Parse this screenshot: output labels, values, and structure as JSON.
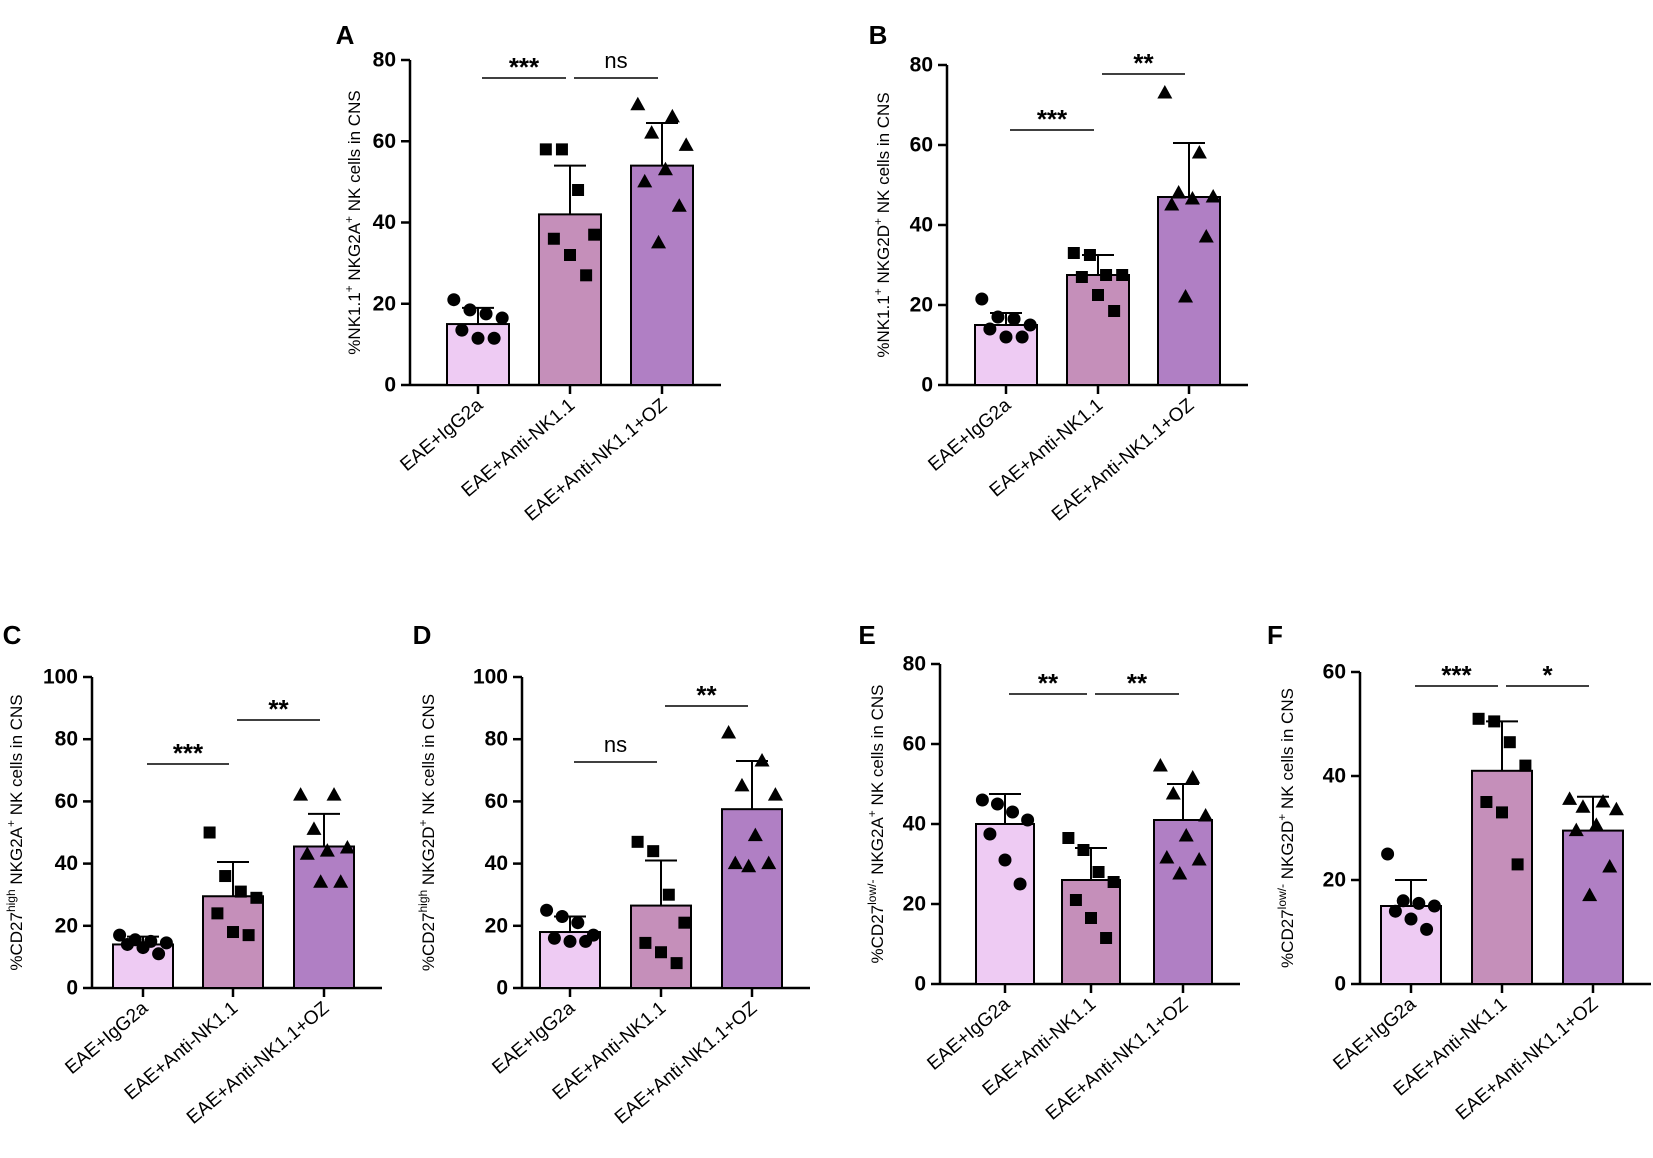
{
  "chart_data": [
    {
      "id": "A",
      "type": "bar",
      "title": "",
      "ylabel": "%NK1.1+ NKG2A+ NK cells in CNS",
      "ylabel_parts": [
        [
          "%NK1.1",
          ""
        ],
        [
          "+",
          "sup"
        ],
        [
          " NKG2A",
          ""
        ],
        [
          "+",
          "sup"
        ],
        [
          " NK cells in CNS",
          ""
        ]
      ],
      "ylim": [
        0,
        80
      ],
      "yticks": [
        0,
        20,
        40,
        60,
        80
      ],
      "yticks_text": [
        "0",
        "20",
        "40",
        "60",
        "80"
      ],
      "categories": [
        "EAE+IgG2a",
        "EAE+Anti-NK1.1",
        "EAE+Anti-NK1.1+OZ"
      ],
      "values": [
        15,
        42,
        54
      ],
      "errors": [
        4,
        12,
        10.5
      ],
      "points": [
        [
          21,
          18.5,
          17.5,
          16.5,
          13.5,
          11.5,
          11.5
        ],
        [
          58,
          58,
          48,
          37,
          36,
          32,
          27
        ],
        [
          69,
          66,
          62,
          59,
          53,
          50,
          44,
          35
        ]
      ],
      "significance": [
        {
          "from": 0,
          "to": 1,
          "label": "***"
        },
        {
          "from": 1,
          "to": 2,
          "label": "ns"
        }
      ]
    },
    {
      "id": "B",
      "type": "bar",
      "title": "",
      "ylabel": "%NK1.1+ NKG2D+ NK cells in CNS",
      "ylabel_parts": [
        [
          "%NK1.1",
          ""
        ],
        [
          "+",
          "sup"
        ],
        [
          " NKG2D",
          ""
        ],
        [
          "+",
          "sup"
        ],
        [
          " NK cells in CNS",
          ""
        ]
      ],
      "ylim": [
        0,
        80
      ],
      "yticks": [
        0,
        20,
        40,
        60,
        80
      ],
      "yticks_text": [
        "0",
        "20",
        "40",
        "60",
        "80"
      ],
      "categories": [
        "EAE+IgG2a",
        "EAE+Anti-NK1.1",
        "EAE+Anti-NK1.1+OZ"
      ],
      "values": [
        15,
        27.5,
        47
      ],
      "errors": [
        3,
        5,
        13.5
      ],
      "points": [
        [
          21.5,
          17,
          16.5,
          15,
          14,
          12,
          12
        ],
        [
          33,
          32.5,
          27.5,
          27.5,
          27,
          22.5,
          18.5
        ],
        [
          73,
          58,
          48,
          47,
          46.5,
          45,
          37,
          22
        ]
      ],
      "significance": [
        {
          "from": 0,
          "to": 1,
          "label": "***"
        },
        {
          "from": 1,
          "to": 2,
          "label": "**"
        }
      ]
    },
    {
      "id": "C",
      "type": "bar",
      "title": "",
      "ylabel": "%CD27high NKG2A+ NK cells in CNS",
      "ylabel_parts": [
        [
          "%CD27",
          ""
        ],
        [
          "high",
          "sup"
        ],
        [
          " NKG2A",
          ""
        ],
        [
          "+",
          "sup"
        ],
        [
          " NK cells in CNS",
          ""
        ]
      ],
      "ylim": [
        0,
        100
      ],
      "yticks": [
        0,
        20,
        40,
        60,
        80,
        100
      ],
      "yticks_text": [
        "0",
        "20",
        "40",
        "60",
        "80",
        "100"
      ],
      "categories": [
        "EAE+IgG2a",
        "EAE+Anti-NK1.1",
        "EAE+Anti-NK1.1+OZ"
      ],
      "values": [
        14,
        29.5,
        45.5
      ],
      "errors": [
        2.5,
        11,
        10.5
      ],
      "points": [
        [
          17,
          15.5,
          15,
          14.5,
          14,
          13,
          11
        ],
        [
          50,
          36,
          31,
          29,
          24,
          18,
          17
        ],
        [
          62,
          62,
          51,
          45,
          44,
          43,
          34,
          34
        ]
      ],
      "significance": [
        {
          "from": 0,
          "to": 1,
          "label": "***"
        },
        {
          "from": 1,
          "to": 2,
          "label": "**"
        }
      ]
    },
    {
      "id": "D",
      "type": "bar",
      "title": "",
      "ylabel": "%CD27high NKG2D+ NK cells in CNS",
      "ylabel_parts": [
        [
          "%CD27",
          ""
        ],
        [
          "high",
          "sup"
        ],
        [
          " NKG2D",
          ""
        ],
        [
          "+",
          "sup"
        ],
        [
          " NK cells in CNS",
          ""
        ]
      ],
      "ylim": [
        0,
        100
      ],
      "yticks": [
        0,
        20,
        40,
        60,
        80,
        100
      ],
      "yticks_text": [
        "0",
        "20",
        "40",
        "60",
        "80",
        "100"
      ],
      "categories": [
        "EAE+IgG2a",
        "EAE+Anti-NK1.1",
        "EAE+Anti-NK1.1+OZ"
      ],
      "values": [
        18,
        26.5,
        57.5
      ],
      "errors": [
        5,
        14.5,
        15.5
      ],
      "points": [
        [
          25,
          23,
          21,
          17,
          16,
          15,
          15
        ],
        [
          47,
          44,
          30,
          21,
          14.5,
          11.5,
          8
        ],
        [
          82,
          73,
          65,
          62,
          49,
          40,
          40,
          39
        ]
      ],
      "significance": [
        {
          "from": 0,
          "to": 1,
          "label": "ns"
        },
        {
          "from": 1,
          "to": 2,
          "label": "**"
        }
      ]
    },
    {
      "id": "E",
      "type": "bar",
      "title": "",
      "ylabel": "%CD27low/- NKG2A+ NK cells in CNS",
      "ylabel_parts": [
        [
          "%CD27",
          ""
        ],
        [
          "low/-",
          "sup"
        ],
        [
          " NKG2A",
          ""
        ],
        [
          "+",
          "sup"
        ],
        [
          " NK cells in CNS",
          ""
        ]
      ],
      "ylim": [
        0,
        80
      ],
      "yticks": [
        0,
        20,
        40,
        60,
        80
      ],
      "yticks_text": [
        "0",
        "20",
        "40",
        "60",
        "80"
      ],
      "categories": [
        "EAE+IgG2a",
        "EAE+Anti-NK1.1",
        "EAE+Anti-NK1.1+OZ"
      ],
      "values": [
        40,
        26,
        41
      ],
      "errors": [
        7.5,
        8,
        9
      ],
      "points": [
        [
          46,
          45,
          43,
          41,
          37.5,
          31,
          25
        ],
        [
          36.5,
          33.5,
          28,
          25.5,
          21,
          16.5,
          11.5
        ],
        [
          54.5,
          51.5,
          47.5,
          42,
          37,
          31.5,
          31,
          27.5
        ]
      ],
      "significance": [
        {
          "from": 0,
          "to": 1,
          "label": "**"
        },
        {
          "from": 1,
          "to": 2,
          "label": "**"
        }
      ]
    },
    {
      "id": "F",
      "type": "bar",
      "title": "",
      "ylabel": "%CD27low/- NKG2D+ NK cells in CNS",
      "ylabel_parts": [
        [
          "%CD27",
          ""
        ],
        [
          "low/-",
          "sup"
        ],
        [
          " NKG2D",
          ""
        ],
        [
          "+",
          "sup"
        ],
        [
          " NK cells in CNS",
          ""
        ]
      ],
      "ylim": [
        0,
        60
      ],
      "yticks": [
        0,
        20,
        40,
        60
      ],
      "yticks_text": [
        "0",
        "20",
        "40",
        "60"
      ],
      "categories": [
        "EAE+IgG2a",
        "EAE+Anti-NK1.1",
        "EAE+Anti-NK1.1+OZ"
      ],
      "values": [
        15,
        41,
        29.5
      ],
      "errors": [
        5,
        9.5,
        6.5
      ],
      "points": [
        [
          25,
          16,
          15.5,
          15,
          14,
          12.5,
          10.5
        ],
        [
          51,
          50.5,
          46.5,
          42,
          35,
          33,
          23
        ],
        [
          35.5,
          35,
          34,
          33.5,
          30.5,
          29.5,
          22.5,
          17
        ]
      ],
      "significance": [
        {
          "from": 0,
          "to": 1,
          "label": "***"
        },
        {
          "from": 1,
          "to": 2,
          "label": "*"
        }
      ]
    }
  ],
  "colors": {
    "bar_fills": [
      "#eecbf3",
      "#c58fba",
      "#b07fc4"
    ],
    "stroke": "#000000"
  },
  "marker_shapes": [
    "circle",
    "square",
    "triangle"
  ]
}
